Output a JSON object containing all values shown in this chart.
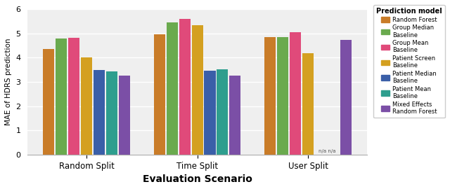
{
  "xlabel": "Evaluation Scenario",
  "ylabel": "MAE of HDRS prediction",
  "categories": [
    "Random Split",
    "Time Split",
    "User Split"
  ],
  "models": [
    "Random Forest",
    "Group Median\nBaseline",
    "Group Mean\nBaseline",
    "Patient Screen\nBaseline",
    "Patient Median\nBaseline",
    "Patient Mean\nBaseline",
    "Mixed Effects\nRandom Forest"
  ],
  "bar_colors": [
    "#c97c28",
    "#6aaa4e",
    "#e04a7a",
    "#d4a020",
    "#3a5fa8",
    "#2e9e8e",
    "#7b4fa6"
  ],
  "values": {
    "Random Split": [
      4.35,
      4.8,
      4.82,
      4.0,
      3.5,
      3.43,
      3.27
    ],
    "Time Split": [
      4.97,
      5.45,
      5.6,
      5.33,
      3.47,
      3.53,
      3.25
    ],
    "User Split": [
      4.85,
      4.85,
      5.05,
      4.18,
      null,
      null,
      4.72
    ]
  },
  "ylim": [
    0,
    6
  ],
  "yticks": [
    0,
    1,
    2,
    3,
    4,
    5,
    6
  ],
  "legend_title": "Prediction model",
  "background_color": "#efefef"
}
